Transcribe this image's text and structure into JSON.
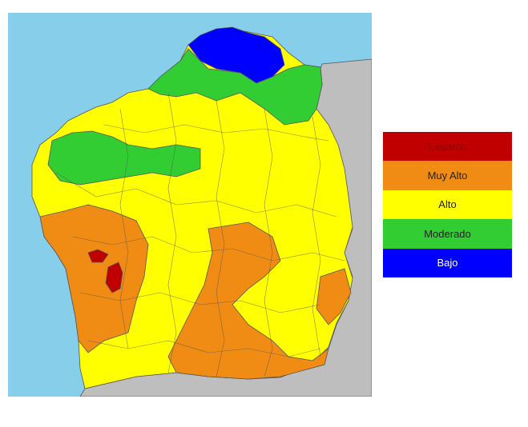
{
  "map": {
    "colors": {
      "sea": "#87CEEB",
      "land_outside": "#BEBEBE",
      "extreme": "#C00000",
      "very_high": "#F08C14",
      "high": "#FFFF00",
      "moderate": "#32CD32",
      "low": "#0000FF",
      "border": "#555555"
    }
  },
  "legend": {
    "items": [
      {
        "label": "Extremo",
        "color": "#C00000"
      },
      {
        "label": "Muy Alto",
        "color": "#F08C14"
      },
      {
        "label": "Alto",
        "color": "#FFFF00"
      },
      {
        "label": "Moderado",
        "color": "#32CD32"
      },
      {
        "label": "Bajo",
        "color": "#0000FF"
      }
    ]
  }
}
